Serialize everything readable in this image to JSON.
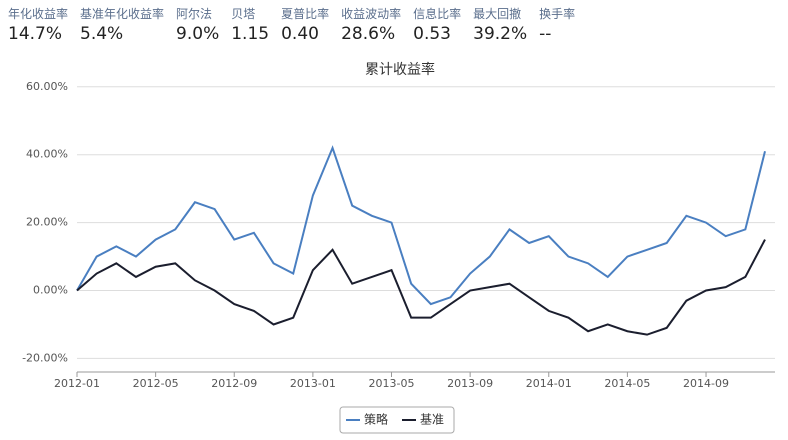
{
  "header": {
    "stats": [
      {
        "label": "年化收益率",
        "value": "14.7%"
      },
      {
        "label": "基准年化收益率",
        "value": "5.4%"
      },
      {
        "label": "阿尔法",
        "value": "9.0%"
      },
      {
        "label": "贝塔",
        "value": "1.15"
      },
      {
        "label": "夏普比率",
        "value": "0.40"
      },
      {
        "label": "收益波动率",
        "value": "28.6%"
      },
      {
        "label": "信息比率",
        "value": "0.53"
      },
      {
        "label": "最大回撤",
        "value": "39.2%"
      },
      {
        "label": "换手率",
        "value": "--"
      }
    ]
  },
  "chart_data": {
    "type": "line",
    "title": "累计收益率",
    "x": [
      "2012-01",
      "2012-02",
      "2012-03",
      "2012-04",
      "2012-05",
      "2012-06",
      "2012-07",
      "2012-08",
      "2012-09",
      "2012-10",
      "2012-11",
      "2012-12",
      "2013-01",
      "2013-02",
      "2013-03",
      "2013-04",
      "2013-05",
      "2013-06",
      "2013-07",
      "2013-08",
      "2013-09",
      "2013-10",
      "2013-11",
      "2013-12",
      "2014-01",
      "2014-02",
      "2014-03",
      "2014-04",
      "2014-05",
      "2014-06",
      "2014-07",
      "2014-08",
      "2014-09",
      "2014-10",
      "2014-11",
      "2014-12"
    ],
    "xlim": [
      "2012-01",
      "2014-12"
    ],
    "xticks": [
      "2012-01",
      "2012-05",
      "2012-09",
      "2013-01",
      "2013-05",
      "2013-09",
      "2014-01",
      "2014-05",
      "2014-09"
    ],
    "ylim": [
      -24,
      62
    ],
    "yticks": [
      {
        "value": -20,
        "label": "-20.00%"
      },
      {
        "value": 0,
        "label": "0.00%"
      },
      {
        "value": 20,
        "label": "20.00%"
      },
      {
        "value": 40,
        "label": "40.00%"
      },
      {
        "value": 60,
        "label": "60.00%"
      }
    ],
    "grid": true,
    "legend": "bottom",
    "series": [
      {
        "name": "策略",
        "color": "#4a7fc1",
        "values": [
          0,
          10,
          13,
          10,
          15,
          18,
          26,
          24,
          15,
          17,
          8,
          5,
          28,
          42,
          25,
          22,
          20,
          2,
          -4,
          -2,
          5,
          10,
          18,
          14,
          16,
          10,
          8,
          4,
          10,
          12,
          14,
          22,
          20,
          16,
          18,
          41
        ]
      },
      {
        "name": "基准",
        "color": "#1b1e2e",
        "values": [
          0,
          5,
          8,
          4,
          7,
          8,
          3,
          0,
          -4,
          -6,
          -10,
          -8,
          6,
          12,
          2,
          4,
          6,
          -8,
          -8,
          -4,
          0,
          1,
          2,
          -2,
          -6,
          -8,
          -12,
          -10,
          -12,
          -13,
          -11,
          -3,
          0,
          1,
          4,
          15
        ]
      }
    ]
  }
}
